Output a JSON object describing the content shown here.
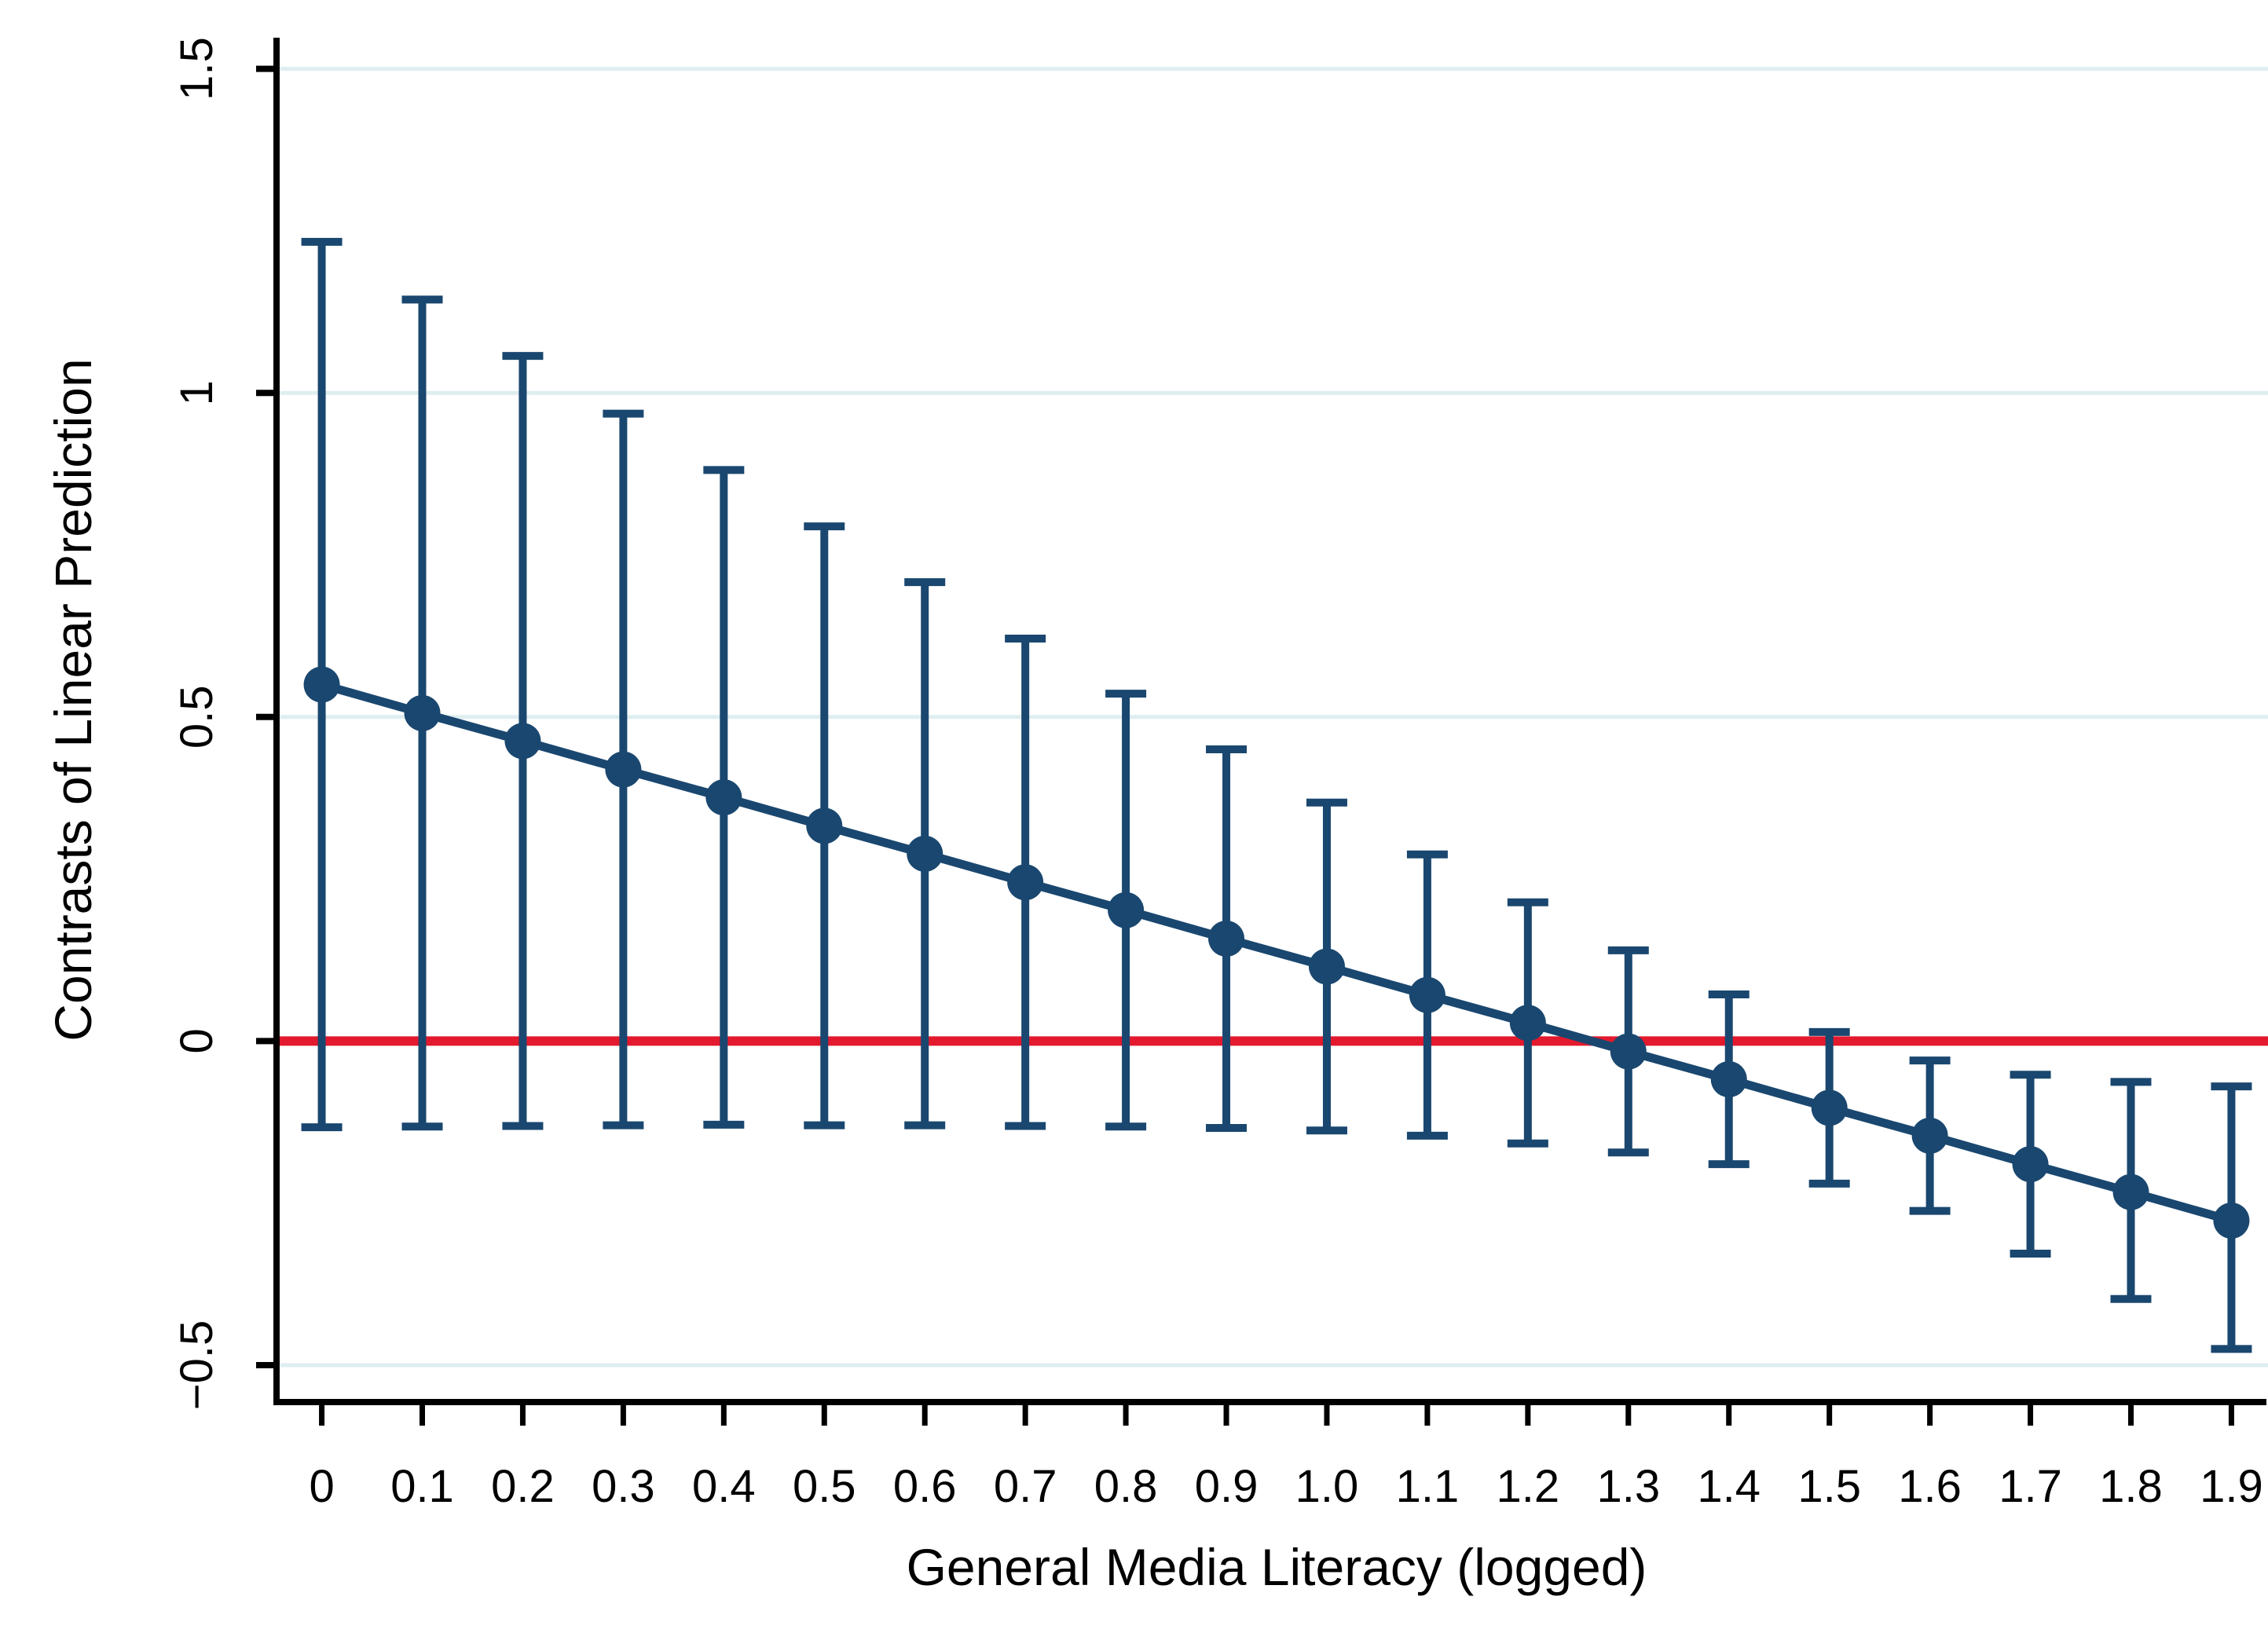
{
  "figure": {
    "xlabel": "General Media Literacy (logged)",
    "ylabel": "Contrasts of Linear Prediction"
  },
  "colors": {
    "series": "#1a476f",
    "zero_line": "#e3192d",
    "gridline": "#dfeef0",
    "axis": "#000000",
    "text": "#000000",
    "background": "#ffffff"
  },
  "chart_data": {
    "type": "line",
    "subtype": "point-estimates-with-error-bars",
    "title": "",
    "xlabel": "General Media Literacy (logged)",
    "ylabel": "Contrasts of Linear Prediction",
    "x": [
      0,
      0.1,
      0.2,
      0.3,
      0.4,
      0.5,
      0.6,
      0.7,
      0.8,
      0.9,
      1.0,
      1.1,
      1.2,
      1.3,
      1.4,
      1.5,
      1.6,
      1.7,
      1.8,
      1.9
    ],
    "x_tick_labels": [
      "0",
      "0.1",
      "0.2",
      "0.3",
      "0.4",
      "0.5",
      "0.6",
      "0.7",
      "0.8",
      "0.9",
      "1.0",
      "1.1",
      "1.2",
      "1.3",
      "1.4",
      "1.5",
      "1.6",
      "1.7",
      "1.8",
      "1.9"
    ],
    "values": [
      0.55,
      0.506,
      0.463,
      0.419,
      0.376,
      0.332,
      0.289,
      0.245,
      0.202,
      0.158,
      0.115,
      0.071,
      0.028,
      -0.016,
      -0.059,
      -0.103,
      -0.146,
      -0.19,
      -0.233,
      -0.277
    ],
    "ci_upper": [
      1.233,
      1.144,
      1.057,
      0.968,
      0.881,
      0.794,
      0.708,
      0.621,
      0.536,
      0.45,
      0.368,
      0.288,
      0.214,
      0.14,
      0.072,
      0.014,
      -0.03,
      -0.052,
      -0.063,
      -0.07
    ],
    "ci_lower": [
      -0.133,
      -0.132,
      -0.131,
      -0.13,
      -0.129,
      -0.13,
      -0.13,
      -0.131,
      -0.132,
      -0.134,
      -0.138,
      -0.146,
      -0.158,
      -0.172,
      -0.19,
      -0.22,
      -0.262,
      -0.328,
      -0.398,
      -0.475
    ],
    "reference_line_y": 0,
    "y_ticks": [
      1.5,
      1,
      0.5,
      0,
      -0.5
    ],
    "y_tick_labels": [
      "1.5",
      "1",
      "0.5",
      "0",
      "−0.5"
    ],
    "xlim": [
      -0.045,
      1.945
    ],
    "ylim": [
      -0.557,
      1.548
    ],
    "grid": true,
    "legend": false,
    "marker": "circle",
    "error_bar_caps": true
  }
}
